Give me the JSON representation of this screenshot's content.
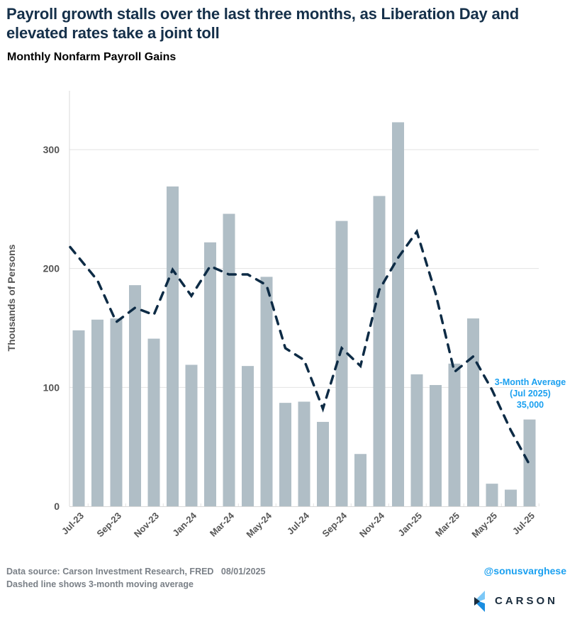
{
  "header": {
    "title": "Payroll growth stalls over the last three months, as Liberation Day and elevated rates take a joint toll",
    "subtitle": "Monthly Nonfarm Payroll Gains"
  },
  "footer": {
    "source": "Data source: Carson Investment Research, FRED   08/01/2025",
    "note": "Dashed line shows 3-month moving average",
    "handle": "@sonusvarghese",
    "logo_text": "CARSON"
  },
  "colors": {
    "bar": "#b0bec6",
    "line": "#0d2b45",
    "annotation": "#1aa0f0",
    "grid": "#e3e3e3",
    "axis_text": "#555555"
  },
  "chart_data": {
    "type": "bar",
    "title": "Monthly Nonfarm Payroll Gains",
    "xlabel": "",
    "ylabel": "Thousands of Persons",
    "ylim": [
      0,
      350
    ],
    "yticks": [
      0,
      100,
      200,
      300
    ],
    "grid": true,
    "categories": [
      "Jul-23",
      "Aug-23",
      "Sep-23",
      "Oct-23",
      "Nov-23",
      "Dec-23",
      "Jan-24",
      "Feb-24",
      "Mar-24",
      "Apr-24",
      "May-24",
      "Jun-24",
      "Jul-24",
      "Aug-24",
      "Sep-24",
      "Oct-24",
      "Nov-24",
      "Dec-24",
      "Jan-25",
      "Feb-25",
      "Mar-25",
      "Apr-25",
      "May-25",
      "Jun-25",
      "Jul-25"
    ],
    "xtick_labels": [
      "Jul-23",
      "Sep-23",
      "Nov-23",
      "Jan-24",
      "Mar-24",
      "May-24",
      "Jul-24",
      "Sep-24",
      "Nov-24",
      "Jan-25",
      "Mar-25",
      "May-25",
      "Jul-25"
    ],
    "series": [
      {
        "name": "Monthly Nonfarm Payroll Gains",
        "type": "bar",
        "values": [
          148,
          157,
          158,
          186,
          141,
          269,
          119,
          222,
          246,
          118,
          193,
          87,
          88,
          71,
          240,
          44,
          261,
          323,
          111,
          102,
          120,
          158,
          19,
          14,
          73
        ]
      },
      {
        "name": "3-month moving average",
        "type": "line",
        "style": "dashed",
        "values": [
          218,
          190,
          155,
          167,
          161,
          199,
          177,
          202,
          195,
          195,
          186,
          133,
          123,
          82,
          133,
          118,
          182,
          209,
          231,
          179,
          113,
          126,
          98,
          64,
          35
        ]
      }
    ],
    "annotation": {
      "lines": [
        "3-Month Average",
        "(Jul 2025)",
        "35,000"
      ],
      "points_to": "Jul-25"
    }
  }
}
